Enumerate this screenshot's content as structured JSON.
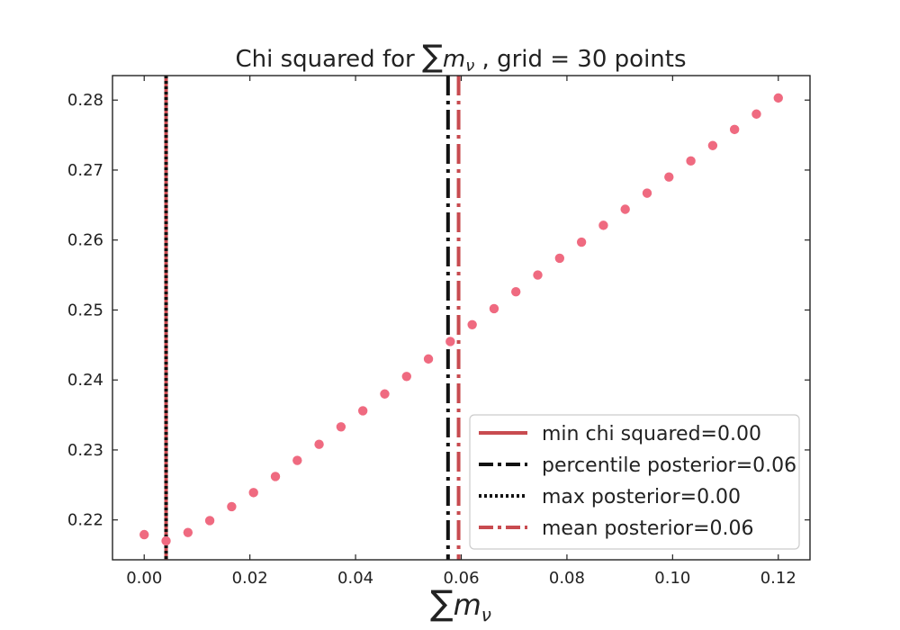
{
  "chart_data": {
    "type": "scatter",
    "title": {
      "prefix": "Chi squared for ",
      "math_sum": "∑",
      "math_m": "m",
      "math_sub": "ν",
      "suffix": " , grid = 30 points"
    },
    "xlabel": {
      "math_sum": "∑",
      "math_m": "m",
      "math_sub": "ν"
    },
    "ylabel": "",
    "xlim": [
      -0.006,
      0.126
    ],
    "ylim": [
      0.2143,
      0.2835
    ],
    "xticks": [
      0.0,
      0.02,
      0.04,
      0.06,
      0.08,
      0.1,
      0.12
    ],
    "xtick_labels": [
      "0.00",
      "0.02",
      "0.04",
      "0.06",
      "0.08",
      "0.10",
      "0.12"
    ],
    "yticks": [
      0.22,
      0.23,
      0.24,
      0.25,
      0.26,
      0.27,
      0.28
    ],
    "ytick_labels": [
      "0.22",
      "0.23",
      "0.24",
      "0.25",
      "0.26",
      "0.27",
      "0.28"
    ],
    "grid": false,
    "legend_position": "lower-right",
    "point_color": "#ef6a80",
    "x": [
      0.0,
      0.00414,
      0.00828,
      0.01241,
      0.01655,
      0.02069,
      0.02483,
      0.02897,
      0.0331,
      0.03724,
      0.04138,
      0.04552,
      0.04966,
      0.05379,
      0.05793,
      0.06207,
      0.06621,
      0.07034,
      0.07448,
      0.07862,
      0.08276,
      0.0869,
      0.09103,
      0.09517,
      0.09931,
      0.10345,
      0.10759,
      0.11172,
      0.11586,
      0.12
    ],
    "y": [
      0.2179,
      0.217,
      0.2182,
      0.2199,
      0.2219,
      0.2239,
      0.2262,
      0.2285,
      0.2308,
      0.2333,
      0.2356,
      0.238,
      0.2405,
      0.243,
      0.2455,
      0.2479,
      0.2502,
      0.2526,
      0.255,
      0.2574,
      0.2597,
      0.2621,
      0.2644,
      0.2667,
      0.269,
      0.2713,
      0.2735,
      0.2758,
      0.278,
      0.2803
    ],
    "vlines": [
      {
        "label": "min chi squared=0.00",
        "x": 0.00414,
        "color": "#c84b50",
        "style": "solid"
      },
      {
        "label": "percentile posterior=0.06",
        "x": 0.0575,
        "color": "#111111",
        "style": "dashdot"
      },
      {
        "label": "max posterior=0.00",
        "x": 0.00414,
        "color": "#111111",
        "style": "dotted"
      },
      {
        "label": "mean posterior=0.06",
        "x": 0.0595,
        "color": "#c84b50",
        "style": "dashdot"
      }
    ]
  }
}
